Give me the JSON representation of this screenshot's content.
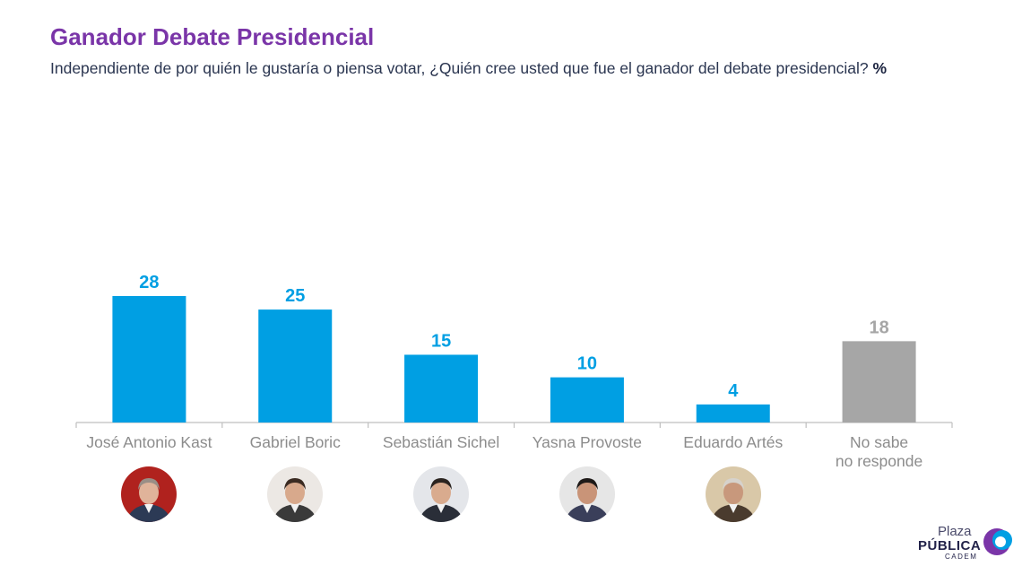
{
  "header": {
    "title": "Ganador Debate Presidencial",
    "subtitle": "Independiente de por quién le gustaría o piensa votar, ¿Quién cree usted que fue el ganador del debate presidencial?",
    "unit": "%"
  },
  "chart_data": {
    "type": "bar",
    "categories": [
      "José Antonio Kast",
      "Gabriel Boric",
      "Sebastián Sichel",
      "Yasna Provoste",
      "Eduardo Artés",
      "No sabe no responde"
    ],
    "values": [
      28,
      25,
      15,
      10,
      4,
      18
    ],
    "data_labels": [
      "28",
      "25",
      "15",
      "10",
      "4",
      "18"
    ],
    "colors": [
      "#009fe3",
      "#009fe3",
      "#009fe3",
      "#009fe3",
      "#009fe3",
      "#a6a6a6"
    ],
    "label_colors": [
      "#009fe3",
      "#009fe3",
      "#009fe3",
      "#009fe3",
      "#009fe3",
      "#a6a6a6"
    ],
    "ylim": [
      0,
      28
    ],
    "grid": false
  },
  "candidate_photos": [
    {
      "name": "candidate-photo-kast",
      "bg": "#b0221e",
      "skin": "#e0b39a",
      "hair": "#9a8e86",
      "suit": "#2c3a55"
    },
    {
      "name": "candidate-photo-boric",
      "bg": "#ece8e4",
      "skin": "#d8a98c",
      "hair": "#3b2b22",
      "suit": "#3a3a3a"
    },
    {
      "name": "candidate-photo-sichel",
      "bg": "#e4e6ea",
      "skin": "#d9ab8e",
      "hair": "#2b2420",
      "suit": "#2a2e38"
    },
    {
      "name": "candidate-photo-provoste",
      "bg": "#e6e6e6",
      "skin": "#c99478",
      "hair": "#1e1a18",
      "suit": "#3a3f5a"
    },
    {
      "name": "candidate-photo-artes",
      "bg": "#d9c8a8",
      "skin": "#c8987c",
      "hair": "#d6d2cc",
      "suit": "#4a3b2e"
    }
  ],
  "logo": {
    "line1": "Plaza",
    "line2": "PÚBLICA",
    "line3": "CADEM",
    "colors": [
      "#7a35a8",
      "#009fe3"
    ]
  }
}
